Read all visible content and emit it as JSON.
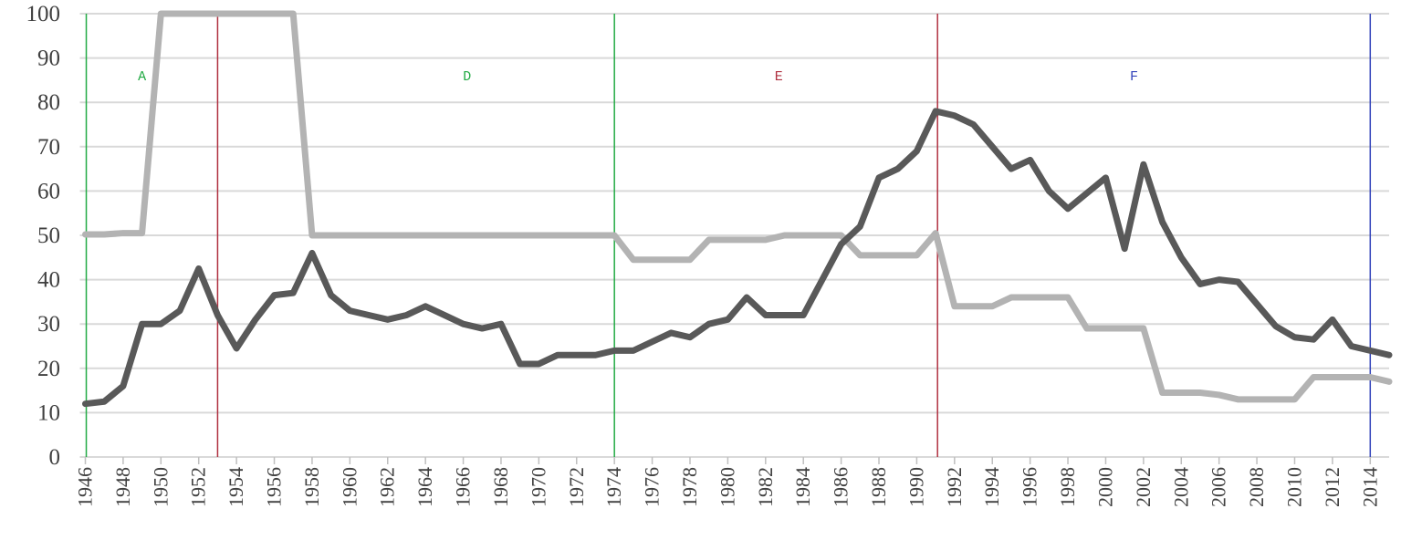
{
  "chart_data": {
    "type": "line",
    "title": "",
    "xlabel": "",
    "ylabel": "",
    "xlim": [
      1946,
      2015
    ],
    "ylim": [
      0,
      100
    ],
    "y_ticks": [
      0,
      10,
      20,
      30,
      40,
      50,
      60,
      70,
      80,
      90,
      100
    ],
    "x_ticks": [
      1946,
      1948,
      1950,
      1952,
      1954,
      1956,
      1958,
      1960,
      1962,
      1964,
      1966,
      1968,
      1970,
      1972,
      1974,
      1976,
      1978,
      1980,
      1982,
      1984,
      1986,
      1988,
      1990,
      1992,
      1994,
      1996,
      1998,
      2000,
      2002,
      2004,
      2006,
      2008,
      2010,
      2012,
      2014
    ],
    "grid": "horizontal",
    "legend": "none",
    "series": [
      {
        "color": "#595959",
        "points": [
          [
            1946,
            12
          ],
          [
            1947,
            12.5
          ],
          [
            1948,
            16
          ],
          [
            1949,
            30
          ],
          [
            1950,
            30
          ],
          [
            1951,
            33
          ],
          [
            1952,
            42.5
          ],
          [
            1953,
            32
          ],
          [
            1954,
            24.5
          ],
          [
            1955,
            31
          ],
          [
            1956,
            36.5
          ],
          [
            1957,
            37
          ],
          [
            1958,
            46
          ],
          [
            1959,
            36.5
          ],
          [
            1960,
            33
          ],
          [
            1961,
            32
          ],
          [
            1962,
            31
          ],
          [
            1963,
            32
          ],
          [
            1964,
            34
          ],
          [
            1965,
            32
          ],
          [
            1966,
            30
          ],
          [
            1967,
            29
          ],
          [
            1968,
            30
          ],
          [
            1969,
            21
          ],
          [
            1970,
            21
          ],
          [
            1971,
            23
          ],
          [
            1972,
            23
          ],
          [
            1973,
            23
          ],
          [
            1974,
            24
          ],
          [
            1975,
            24
          ],
          [
            1976,
            26
          ],
          [
            1977,
            28
          ],
          [
            1978,
            27
          ],
          [
            1979,
            30
          ],
          [
            1980,
            31
          ],
          [
            1981,
            36
          ],
          [
            1982,
            32
          ],
          [
            1983,
            32
          ],
          [
            1984,
            32
          ],
          [
            1985,
            40
          ],
          [
            1986,
            48
          ],
          [
            1987,
            52
          ],
          [
            1988,
            63
          ],
          [
            1989,
            65
          ],
          [
            1990,
            69
          ],
          [
            1991,
            78
          ],
          [
            1992,
            77
          ],
          [
            1993,
            75
          ],
          [
            1994,
            70
          ],
          [
            1995,
            65
          ],
          [
            1996,
            67
          ],
          [
            1997,
            60
          ],
          [
            1998,
            56
          ],
          [
            1999,
            59.5
          ],
          [
            2000,
            63
          ],
          [
            2001,
            47
          ],
          [
            2002,
            66
          ],
          [
            2003,
            53
          ],
          [
            2004,
            45
          ],
          [
            2005,
            39
          ],
          [
            2006,
            40
          ],
          [
            2007,
            39.5
          ],
          [
            2008,
            34.5
          ],
          [
            2009,
            29.5
          ],
          [
            2010,
            27
          ],
          [
            2011,
            26.5
          ],
          [
            2012,
            31
          ],
          [
            2013,
            25
          ],
          [
            2014,
            24
          ],
          [
            2015,
            23
          ]
        ]
      },
      {
        "color": "#b3b3b3",
        "points": [
          [
            1946,
            50.2
          ],
          [
            1947,
            50.2
          ],
          [
            1948,
            50.5
          ],
          [
            1949,
            50.5
          ],
          [
            1950,
            100
          ],
          [
            1951,
            100
          ],
          [
            1952,
            100
          ],
          [
            1953,
            100
          ],
          [
            1954,
            100
          ],
          [
            1955,
            100
          ],
          [
            1956,
            100
          ],
          [
            1957,
            100
          ],
          [
            1958,
            50
          ],
          [
            1959,
            50
          ],
          [
            1960,
            50
          ],
          [
            1961,
            50
          ],
          [
            1962,
            50
          ],
          [
            1963,
            50
          ],
          [
            1964,
            50
          ],
          [
            1965,
            50
          ],
          [
            1966,
            50
          ],
          [
            1967,
            50
          ],
          [
            1968,
            50
          ],
          [
            1969,
            50
          ],
          [
            1970,
            50
          ],
          [
            1971,
            50
          ],
          [
            1972,
            50
          ],
          [
            1973,
            50
          ],
          [
            1974,
            50
          ],
          [
            1975,
            44.5
          ],
          [
            1976,
            44.5
          ],
          [
            1977,
            44.5
          ],
          [
            1978,
            44.5
          ],
          [
            1979,
            49
          ],
          [
            1980,
            49
          ],
          [
            1981,
            49
          ],
          [
            1982,
            49
          ],
          [
            1983,
            50
          ],
          [
            1984,
            50
          ],
          [
            1985,
            50
          ],
          [
            1986,
            50
          ],
          [
            1987,
            45.5
          ],
          [
            1988,
            45.5
          ],
          [
            1989,
            45.5
          ],
          [
            1990,
            45.5
          ],
          [
            1991,
            50.5
          ],
          [
            1992,
            34
          ],
          [
            1993,
            34
          ],
          [
            1994,
            34
          ],
          [
            1995,
            36
          ],
          [
            1996,
            36
          ],
          [
            1997,
            36
          ],
          [
            1998,
            36
          ],
          [
            1999,
            29
          ],
          [
            2000,
            29
          ],
          [
            2001,
            29
          ],
          [
            2002,
            29
          ],
          [
            2003,
            14.5
          ],
          [
            2004,
            14.5
          ],
          [
            2005,
            14.5
          ],
          [
            2006,
            14
          ],
          [
            2007,
            13
          ],
          [
            2008,
            13
          ],
          [
            2009,
            13
          ],
          [
            2010,
            13
          ],
          [
            2011,
            18
          ],
          [
            2012,
            18
          ],
          [
            2013,
            18
          ],
          [
            2014,
            18
          ],
          [
            2015,
            17
          ]
        ]
      }
    ],
    "period_lines": [
      {
        "x": 1946.05,
        "color": "#22aa44"
      },
      {
        "x": 1953,
        "color": "#b03040"
      },
      {
        "x": 1974,
        "color": "#22aa44"
      },
      {
        "x": 1991.1,
        "color": "#b03040"
      },
      {
        "x": 2014,
        "color": "#3344bb"
      }
    ],
    "period_labels": [
      {
        "text": "A",
        "x": 1949,
        "y": 85,
        "color": "#22aa44"
      },
      {
        "text": "D",
        "x": 1966.2,
        "y": 85,
        "color": "#22aa44"
      },
      {
        "text": "E",
        "x": 1982.7,
        "y": 85,
        "color": "#b03040"
      },
      {
        "text": "F",
        "x": 2001.5,
        "y": 85,
        "color": "#3344bb"
      }
    ]
  }
}
